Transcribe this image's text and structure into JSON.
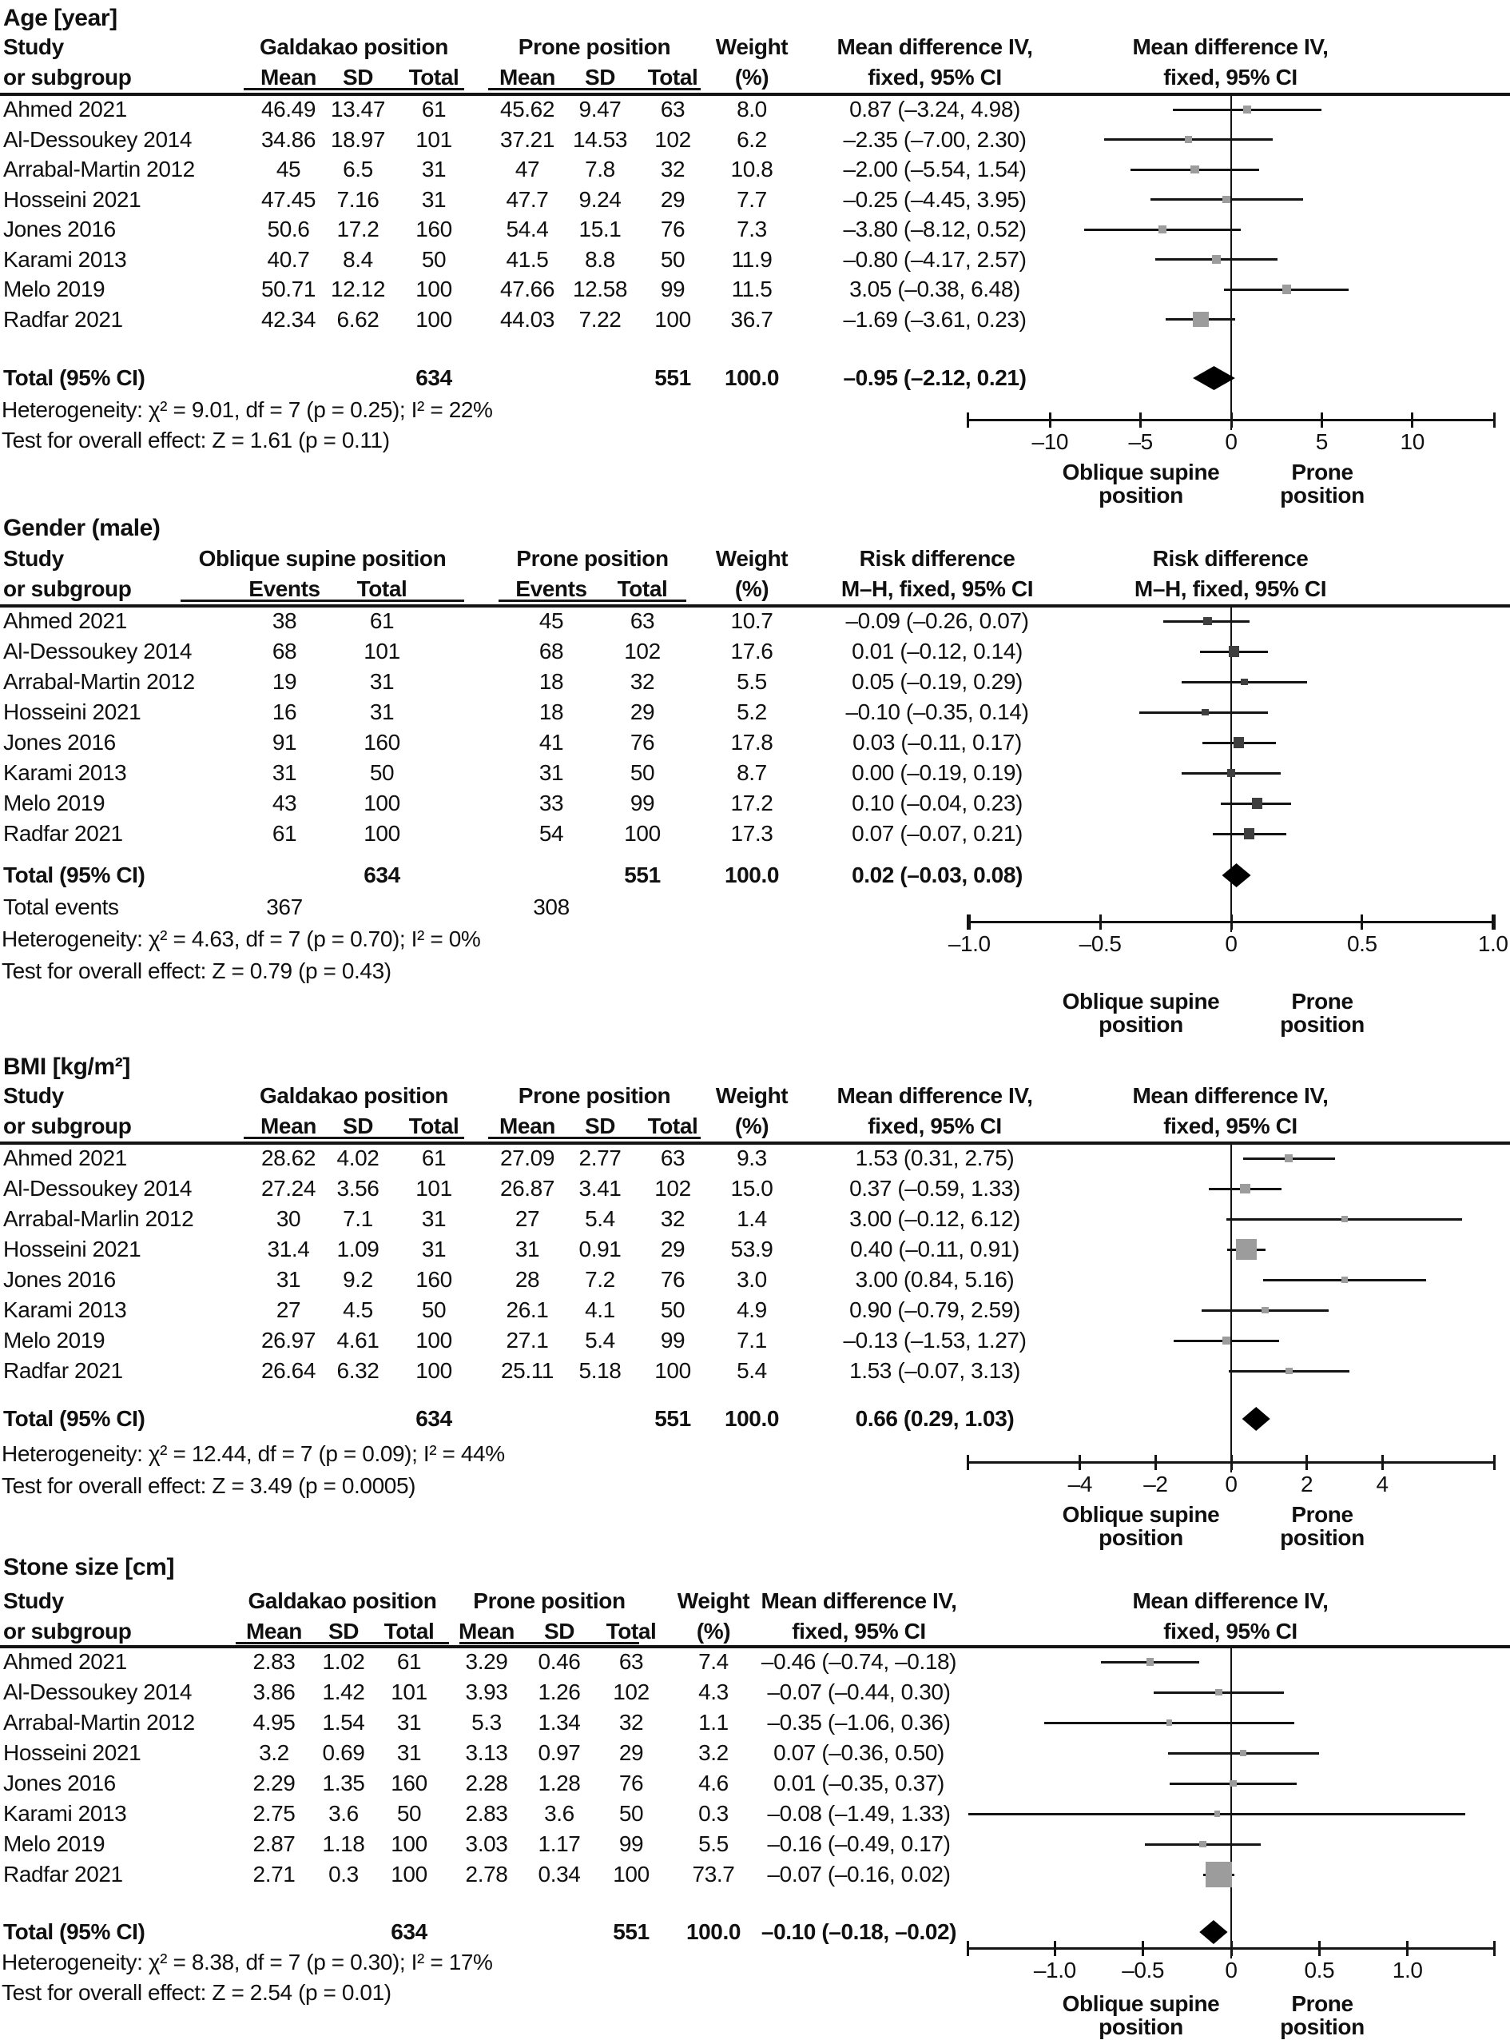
{
  "figure_background": "#ffffff",
  "colors": {
    "text": "#101010",
    "line": "#141414",
    "diamond": "#000000",
    "marker_light": "#9c9c9c",
    "marker_dark": "#3f3f3f"
  },
  "chart_data": [
    {
      "type": "forest",
      "title": "Age [year]",
      "study_header": [
        "Study",
        "or subgroup"
      ],
      "group1": {
        "label": "Galdakao position",
        "columns": [
          "Mean",
          "SD",
          "Total"
        ]
      },
      "group2": {
        "label": "Prone position",
        "columns": [
          "Mean",
          "SD",
          "Total"
        ]
      },
      "weight_header": [
        "Weight",
        "(%)"
      ],
      "effect_header": [
        "Mean difference IV,",
        "fixed, 95% CI"
      ],
      "marker_color": "#9c9c9c",
      "studies": [
        {
          "name": "Ahmed 2021",
          "g1": [
            "46.49",
            "13.47",
            "61"
          ],
          "g2": [
            "45.62",
            "9.47",
            "63"
          ],
          "weight": "8.0",
          "effect": 0.87,
          "ci": [
            -3.24,
            4.98
          ],
          "effect_label": "0.87 (–3.24, 4.98)"
        },
        {
          "name": "Al-Dessoukey 2014",
          "g1": [
            "34.86",
            "18.97",
            "101"
          ],
          "g2": [
            "37.21",
            "14.53",
            "102"
          ],
          "weight": "6.2",
          "effect": -2.35,
          "ci": [
            -7.0,
            2.3
          ],
          "effect_label": "–2.35 (–7.00, 2.30)"
        },
        {
          "name": "Arrabal-Martin 2012",
          "g1": [
            "45",
            "6.5",
            "31"
          ],
          "g2": [
            "47",
            "7.8",
            "32"
          ],
          "weight": "10.8",
          "effect": -2.0,
          "ci": [
            -5.54,
            1.54
          ],
          "effect_label": "–2.00 (–5.54, 1.54)"
        },
        {
          "name": "Hosseini 2021",
          "g1": [
            "47.45",
            "7.16",
            "31"
          ],
          "g2": [
            "47.7",
            "9.24",
            "29"
          ],
          "weight": "7.7",
          "effect": -0.25,
          "ci": [
            -4.45,
            3.95
          ],
          "effect_label": "–0.25 (–4.45, 3.95)"
        },
        {
          "name": "Jones 2016",
          "g1": [
            "50.6",
            "17.2",
            "160"
          ],
          "g2": [
            "54.4",
            "15.1",
            "76"
          ],
          "weight": "7.3",
          "effect": -3.8,
          "ci": [
            -8.12,
            0.52
          ],
          "effect_label": "–3.80 (–8.12, 0.52)"
        },
        {
          "name": "Karami 2013",
          "g1": [
            "40.7",
            "8.4",
            "50"
          ],
          "g2": [
            "41.5",
            "8.8",
            "50"
          ],
          "weight": "11.9",
          "effect": -0.8,
          "ci": [
            -4.17,
            2.57
          ],
          "effect_label": "–0.80 (–4.17, 2.57)"
        },
        {
          "name": "Melo 2019",
          "g1": [
            "50.71",
            "12.12",
            "100"
          ],
          "g2": [
            "47.66",
            "12.58",
            "99"
          ],
          "weight": "11.5",
          "effect": 3.05,
          "ci": [
            -0.38,
            6.48
          ],
          "effect_label": "3.05 (–0.38, 6.48)"
        },
        {
          "name": "Radfar 2021",
          "g1": [
            "42.34",
            "6.62",
            "100"
          ],
          "g2": [
            "44.03",
            "7.22",
            "100"
          ],
          "weight": "36.7",
          "effect": -1.69,
          "ci": [
            -3.61,
            0.23
          ],
          "effect_label": "–1.69 (–3.61, 0.23)"
        }
      ],
      "total": {
        "label": "Total (95% CI)",
        "g1_total": "634",
        "g2_total": "551",
        "weight": "100.0",
        "effect": -0.95,
        "ci": [
          -2.12,
          0.21
        ],
        "effect_label": "–0.95 (–2.12, 0.21)"
      },
      "heterogeneity": "Heterogeneity: χ² = 9.01, df = 7 (p = 0.25); I² = 22%",
      "overall_test": "Test for overall effect: Z = 1.61 (p = 0.11)",
      "axis": {
        "ticks": [
          -10,
          -5,
          0,
          5,
          10
        ],
        "tick_labels": [
          "–10",
          "–5",
          "0",
          "5",
          "10"
        ],
        "range": [
          -14.6,
          14.6
        ],
        "left_label": [
          "Oblique supine",
          "position"
        ],
        "right_label": [
          "Prone",
          "position"
        ]
      }
    },
    {
      "type": "forest",
      "title": "Gender (male)",
      "study_header": [
        "Study",
        "or subgroup"
      ],
      "group1": {
        "label": "Oblique supine position",
        "columns": [
          "Events",
          "Total"
        ]
      },
      "group2": {
        "label": "Prone position",
        "columns": [
          "Events",
          "Total"
        ]
      },
      "weight_header": [
        "Weight",
        "(%)"
      ],
      "effect_header": [
        "Risk difference",
        "M–H, fixed, 95% CI"
      ],
      "marker_color": "#3f3f3f",
      "studies": [
        {
          "name": "Ahmed 2021",
          "g1": [
            "38",
            "61"
          ],
          "g2": [
            "45",
            "63"
          ],
          "weight": "10.7",
          "effect": -0.09,
          "ci": [
            -0.26,
            0.07
          ],
          "effect_label": "–0.09 (–0.26, 0.07)"
        },
        {
          "name": "Al-Dessoukey 2014",
          "g1": [
            "68",
            "101"
          ],
          "g2": [
            "68",
            "102"
          ],
          "weight": "17.6",
          "effect": 0.01,
          "ci": [
            -0.12,
            0.14
          ],
          "effect_label": "0.01 (–0.12, 0.14)"
        },
        {
          "name": "Arrabal-Martin 2012",
          "g1": [
            "19",
            "31"
          ],
          "g2": [
            "18",
            "32"
          ],
          "weight": "5.5",
          "effect": 0.05,
          "ci": [
            -0.19,
            0.29
          ],
          "effect_label": "0.05 (–0.19, 0.29)"
        },
        {
          "name": "Hosseini 2021",
          "g1": [
            "16",
            "31"
          ],
          "g2": [
            "18",
            "29"
          ],
          "weight": "5.2",
          "effect": -0.1,
          "ci": [
            -0.35,
            0.14
          ],
          "effect_label": "–0.10 (–0.35, 0.14)"
        },
        {
          "name": "Jones 2016",
          "g1": [
            "91",
            "160"
          ],
          "g2": [
            "41",
            "76"
          ],
          "weight": "17.8",
          "effect": 0.03,
          "ci": [
            -0.11,
            0.17
          ],
          "effect_label": "0.03 (–0.11, 0.17)"
        },
        {
          "name": "Karami 2013",
          "g1": [
            "31",
            "50"
          ],
          "g2": [
            "31",
            "50"
          ],
          "weight": "8.7",
          "effect": 0.0,
          "ci": [
            -0.19,
            0.19
          ],
          "effect_label": "0.00 (–0.19, 0.19)"
        },
        {
          "name": "Melo 2019",
          "g1": [
            "43",
            "100"
          ],
          "g2": [
            "33",
            "99"
          ],
          "weight": "17.2",
          "effect": 0.1,
          "ci": [
            -0.04,
            0.23
          ],
          "effect_label": "0.10 (–0.04, 0.23)"
        },
        {
          "name": "Radfar 2021",
          "g1": [
            "61",
            "100"
          ],
          "g2": [
            "54",
            "100"
          ],
          "weight": "17.3",
          "effect": 0.07,
          "ci": [
            -0.07,
            0.21
          ],
          "effect_label": "0.07 (–0.07, 0.21)"
        }
      ],
      "total": {
        "label": "Total (95% CI)",
        "g1_total": "634",
        "g2_total": "551",
        "weight": "100.0",
        "effect": 0.02,
        "ci": [
          -0.03,
          0.08
        ],
        "effect_label": "0.02 (–0.03, 0.08)"
      },
      "total_events": {
        "label": "Total events",
        "g1": "367",
        "g2": "308"
      },
      "heterogeneity": "Heterogeneity: χ² = 4.63, df = 7 (p = 0.70); I² = 0%",
      "overall_test": "Test for overall effect: Z = 0.79 (p = 0.43)",
      "axis": {
        "ticks": [
          -1.0,
          -0.5,
          0,
          0.5,
          1.0
        ],
        "tick_labels": [
          "–1.0",
          "–0.5",
          "0",
          "0.5",
          "1.0"
        ],
        "range": [
          -1.01,
          1.01
        ],
        "left_label": [
          "Oblique supine",
          "position"
        ],
        "right_label": [
          "Prone",
          "position"
        ]
      }
    },
    {
      "type": "forest",
      "title": "BMI [kg/m²]",
      "study_header": [
        "Study",
        "or subgroup"
      ],
      "group1": {
        "label": "Galdakao position",
        "columns": [
          "Mean",
          "SD",
          "Total"
        ]
      },
      "group2": {
        "label": "Prone position",
        "columns": [
          "Mean",
          "SD",
          "Total"
        ]
      },
      "weight_header": [
        "Weight",
        "(%)"
      ],
      "effect_header": [
        "Mean difference IV,",
        "fixed, 95% CI"
      ],
      "marker_color": "#9c9c9c",
      "studies": [
        {
          "name": "Ahmed 2021",
          "g1": [
            "28.62",
            "4.02",
            "61"
          ],
          "g2": [
            "27.09",
            "2.77",
            "63"
          ],
          "weight": "9.3",
          "effect": 1.53,
          "ci": [
            0.31,
            2.75
          ],
          "effect_label": "1.53 (0.31, 2.75)"
        },
        {
          "name": "Al-Dessoukey 2014",
          "g1": [
            "27.24",
            "3.56",
            "101"
          ],
          "g2": [
            "26.87",
            "3.41",
            "102"
          ],
          "weight": "15.0",
          "effect": 0.37,
          "ci": [
            -0.59,
            1.33
          ],
          "effect_label": "0.37 (–0.59, 1.33)"
        },
        {
          "name": "Arrabal-Marlin 2012",
          "g1": [
            "30",
            "7.1",
            "31"
          ],
          "g2": [
            "27",
            "5.4",
            "32"
          ],
          "weight": "1.4",
          "effect": 3.0,
          "ci": [
            -0.12,
            6.12
          ],
          "effect_label": "3.00 (–0.12, 6.12)"
        },
        {
          "name": "Hosseini 2021",
          "g1": [
            "31.4",
            "1.09",
            "31"
          ],
          "g2": [
            "31",
            "0.91",
            "29"
          ],
          "weight": "53.9",
          "effect": 0.4,
          "ci": [
            -0.11,
            0.91
          ],
          "effect_label": "0.40 (–0.11, 0.91)"
        },
        {
          "name": "Jones 2016",
          "g1": [
            "31",
            "9.2",
            "160"
          ],
          "g2": [
            "28",
            "7.2",
            "76"
          ],
          "weight": "3.0",
          "effect": 3.0,
          "ci": [
            0.84,
            5.16
          ],
          "effect_label": "3.00 (0.84, 5.16)"
        },
        {
          "name": "Karami 2013",
          "g1": [
            "27",
            "4.5",
            "50"
          ],
          "g2": [
            "26.1",
            "4.1",
            "50"
          ],
          "weight": "4.9",
          "effect": 0.9,
          "ci": [
            -0.79,
            2.59
          ],
          "effect_label": "0.90 (–0.79, 2.59)"
        },
        {
          "name": "Melo 2019",
          "g1": [
            "26.97",
            "4.61",
            "100"
          ],
          "g2": [
            "27.1",
            "5.4",
            "99"
          ],
          "weight": "7.1",
          "effect": -0.13,
          "ci": [
            -1.53,
            1.27
          ],
          "effect_label": "–0.13 (–1.53, 1.27)"
        },
        {
          "name": "Radfar 2021",
          "g1": [
            "26.64",
            "6.32",
            "100"
          ],
          "g2": [
            "25.11",
            "5.18",
            "100"
          ],
          "weight": "5.4",
          "effect": 1.53,
          "ci": [
            -0.07,
            3.13
          ],
          "effect_label": "1.53 (–0.07, 3.13)"
        }
      ],
      "total": {
        "label": "Total (95% CI)",
        "g1_total": "634",
        "g2_total": "551",
        "weight": "100.0",
        "effect": 0.66,
        "ci": [
          0.29,
          1.03
        ],
        "effect_label": "0.66 (0.29, 1.03)"
      },
      "heterogeneity": "Heterogeneity: χ² = 12.44, df = 7 (p = 0.09); I² = 44%",
      "overall_test": "Test for overall effect: Z = 3.49 (p = 0.0005)",
      "axis": {
        "ticks": [
          -4,
          -2,
          0,
          2,
          4
        ],
        "tick_labels": [
          "–4",
          "–2",
          "0",
          "2",
          "4"
        ],
        "range": [
          -7.0,
          7.0
        ],
        "left_label": [
          "Oblique supine",
          "position"
        ],
        "right_label": [
          "Prone",
          "position"
        ]
      }
    },
    {
      "type": "forest",
      "title": "Stone size [cm]",
      "study_header": [
        "Study",
        "or subgroup"
      ],
      "group1": {
        "label": "Galdakao position",
        "columns": [
          "Mean",
          "SD",
          "Total"
        ]
      },
      "group2": {
        "label": "Prone position",
        "columns": [
          "Mean",
          "SD",
          "Total"
        ]
      },
      "weight_header": [
        "Weight",
        "(%)"
      ],
      "effect_header": [
        "Mean difference IV,",
        "fixed, 95% CI"
      ],
      "marker_color": "#9c9c9c",
      "studies": [
        {
          "name": "Ahmed 2021",
          "g1": [
            "2.83",
            "1.02",
            "61"
          ],
          "g2": [
            "3.29",
            "0.46",
            "63"
          ],
          "weight": "7.4",
          "effect": -0.46,
          "ci": [
            -0.74,
            -0.18
          ],
          "effect_label": "–0.46 (–0.74, –0.18)"
        },
        {
          "name": "Al-Dessoukey 2014",
          "g1": [
            "3.86",
            "1.42",
            "101"
          ],
          "g2": [
            "3.93",
            "1.26",
            "102"
          ],
          "weight": "4.3",
          "effect": -0.07,
          "ci": [
            -0.44,
            0.3
          ],
          "effect_label": "–0.07 (–0.44, 0.30)"
        },
        {
          "name": "Arrabal-Martin 2012",
          "g1": [
            "4.95",
            "1.54",
            "31"
          ],
          "g2": [
            "5.3",
            "1.34",
            "32"
          ],
          "weight": "1.1",
          "effect": -0.35,
          "ci": [
            -1.06,
            0.36
          ],
          "effect_label": "–0.35 (–1.06, 0.36)"
        },
        {
          "name": "Hosseini 2021",
          "g1": [
            "3.2",
            "0.69",
            "31"
          ],
          "g2": [
            "3.13",
            "0.97",
            "29"
          ],
          "weight": "3.2",
          "effect": 0.07,
          "ci": [
            -0.36,
            0.5
          ],
          "effect_label": "0.07 (–0.36, 0.50)"
        },
        {
          "name": "Jones 2016",
          "g1": [
            "2.29",
            "1.35",
            "160"
          ],
          "g2": [
            "2.28",
            "1.28",
            "76"
          ],
          "weight": "4.6",
          "effect": 0.01,
          "ci": [
            -0.35,
            0.37
          ],
          "effect_label": "0.01 (–0.35, 0.37)"
        },
        {
          "name": "Karami 2013",
          "g1": [
            "2.75",
            "3.6",
            "50"
          ],
          "g2": [
            "2.83",
            "3.6",
            "50"
          ],
          "weight": "0.3",
          "effect": -0.08,
          "ci": [
            -1.49,
            1.33
          ],
          "effect_label": "–0.08 (–1.49, 1.33)"
        },
        {
          "name": "Melo 2019",
          "g1": [
            "2.87",
            "1.18",
            "100"
          ],
          "g2": [
            "3.03",
            "1.17",
            "99"
          ],
          "weight": "5.5",
          "effect": -0.16,
          "ci": [
            -0.49,
            0.17
          ],
          "effect_label": "–0.16 (–0.49, 0.17)"
        },
        {
          "name": "Radfar 2021",
          "g1": [
            "2.71",
            "0.3",
            "100"
          ],
          "g2": [
            "2.78",
            "0.34",
            "100"
          ],
          "weight": "73.7",
          "effect": -0.07,
          "ci": [
            -0.16,
            0.02
          ],
          "effect_label": "–0.07 (–0.16, 0.02)"
        }
      ],
      "total": {
        "label": "Total (95% CI)",
        "g1_total": "634",
        "g2_total": "551",
        "weight": "100.0",
        "effect": -0.1,
        "ci": [
          -0.18,
          -0.02
        ],
        "effect_label": "–0.10 (–0.18, –0.02)"
      },
      "heterogeneity": "Heterogeneity: χ² = 8.38, df = 7 (p = 0.30); I² = 17%",
      "overall_test": "Test for overall effect: Z = 2.54 (p = 0.01)",
      "axis": {
        "ticks": [
          -1.0,
          -0.5,
          0,
          0.5,
          1.0
        ],
        "tick_labels": [
          "–1.0",
          "–0.5",
          "0",
          "0.5",
          "1.0"
        ],
        "range": [
          -1.5,
          1.5
        ],
        "left_label": [
          "Oblique supine",
          "position"
        ],
        "right_label": [
          "Prone",
          "position"
        ]
      }
    }
  ]
}
